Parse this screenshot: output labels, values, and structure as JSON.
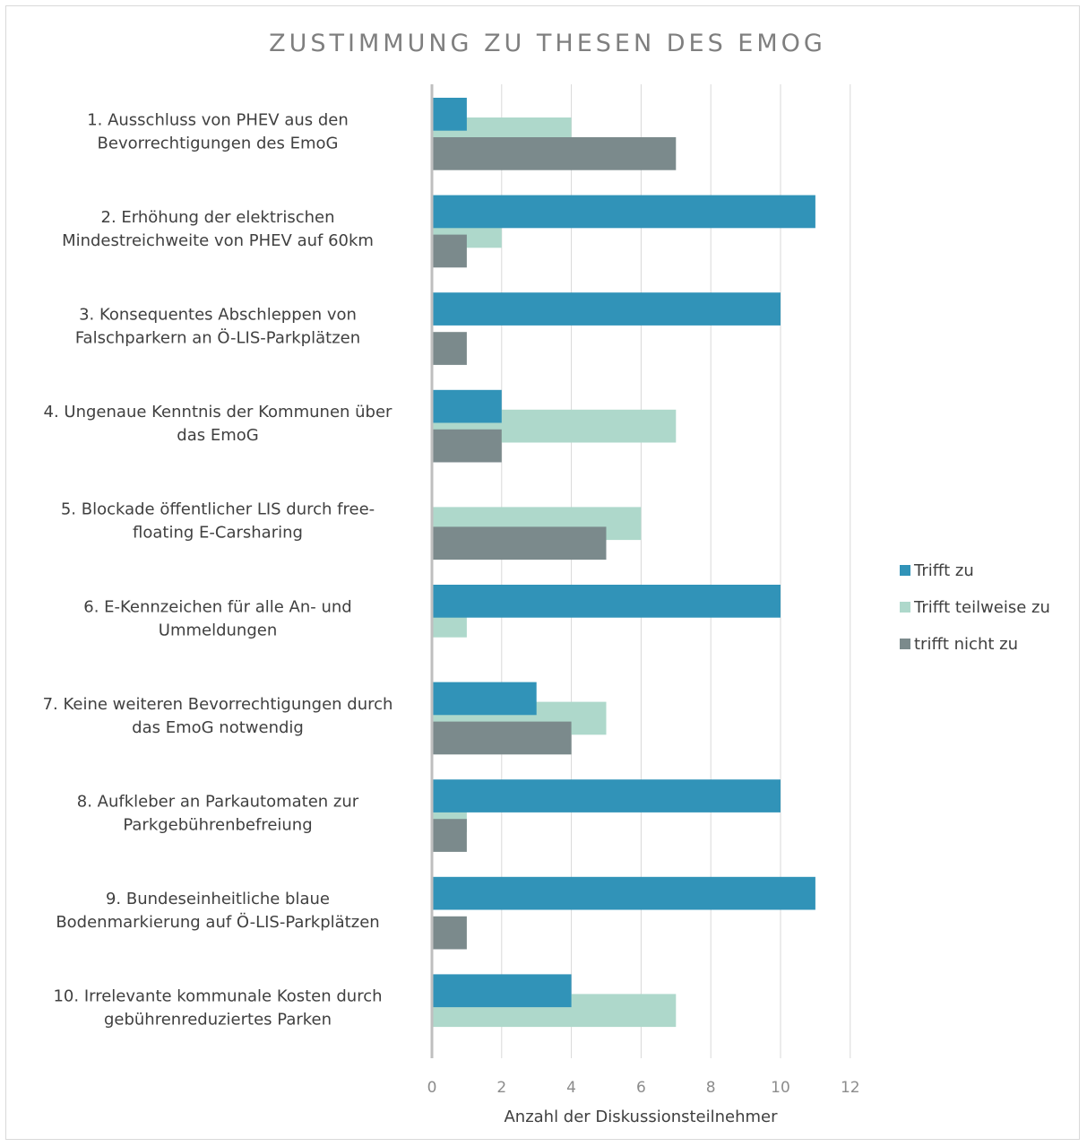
{
  "chart_data": {
    "type": "bar",
    "orientation": "horizontal",
    "title": "ZUSTIMMUNG ZU THESEN DES EMOG",
    "xlabel": "Anzahl der Diskussionsteilnehmer",
    "ylabel": "",
    "xlim": [
      0,
      12
    ],
    "xticks": [
      0,
      2,
      4,
      6,
      8,
      10,
      12
    ],
    "grid": true,
    "legend_position": "right",
    "categories": [
      [
        "1. Ausschluss von PHEV aus den",
        "Bevorrechtigungen des EmoG"
      ],
      [
        "2. Erhöhung der elektrischen",
        "Mindestreichweite von PHEV auf 60km"
      ],
      [
        "3. Konsequentes Abschleppen von",
        "Falschparkern an Ö-LIS-Parkplätzen"
      ],
      [
        "4. Ungenaue Kenntnis der Kommunen über",
        "das EmoG"
      ],
      [
        "5. Blockade öffentlicher LIS durch free-",
        "floating E-Carsharing"
      ],
      [
        "6. E-Kennzeichen für alle An- und",
        "Ummeldungen"
      ],
      [
        "7. Keine weiteren Bevorrechtigungen durch",
        "das EmoG notwendig"
      ],
      [
        "8. Aufkleber an Parkautomaten zur",
        "Parkgebührenbefreiung"
      ],
      [
        "9. Bundeseinheitliche blaue",
        "Bodenmarkierung auf Ö-LIS-Parkplätzen"
      ],
      [
        "10. Irrelevante kommunale Kosten durch",
        "gebührenreduziertes Parken"
      ]
    ],
    "series": [
      {
        "name": "Trifft zu",
        "color": "#3193b8",
        "values": [
          1,
          11,
          10,
          2,
          0,
          10,
          3,
          10,
          11,
          4
        ]
      },
      {
        "name": "Trifft teilweise zu",
        "color": "#aed8cb",
        "values": [
          4,
          2,
          0,
          7,
          6,
          1,
          5,
          1,
          0,
          7
        ]
      },
      {
        "name": "trifft nicht zu",
        "color": "#7b8a8c",
        "values": [
          7,
          1,
          1,
          2,
          5,
          0,
          4,
          1,
          1,
          0
        ]
      }
    ]
  }
}
